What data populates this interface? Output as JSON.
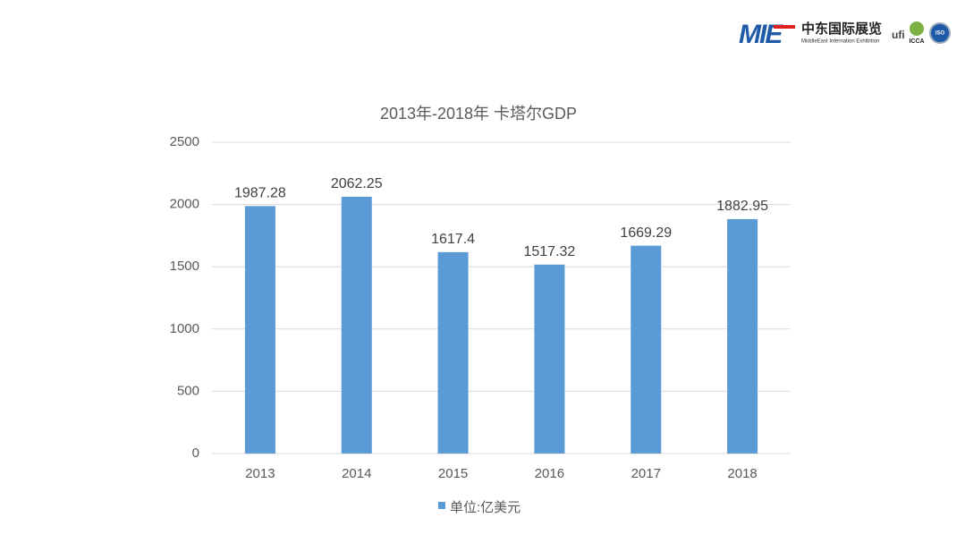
{
  "logo": {
    "mark": "MIE",
    "name": "中东国际展览",
    "subtitle": "MiddleEast Internation Exhibition",
    "badges": [
      "ufi",
      "ICCA",
      "ISO"
    ]
  },
  "chart_data": {
    "type": "bar",
    "title": "2013年-2018年 卡塔尔GDP",
    "categories": [
      "2013",
      "2014",
      "2015",
      "2016",
      "2017",
      "2018"
    ],
    "series": [
      {
        "name": "单位:亿美元",
        "color": "#5b9bd5",
        "values": [
          1987.28,
          2062.25,
          1617.4,
          1517.32,
          1669.29,
          1882.95
        ]
      }
    ],
    "ylim": [
      0,
      2500
    ],
    "yticks": [
      0,
      500,
      1000,
      1500,
      2000,
      2500
    ],
    "grid": true,
    "legend": "bottom"
  }
}
